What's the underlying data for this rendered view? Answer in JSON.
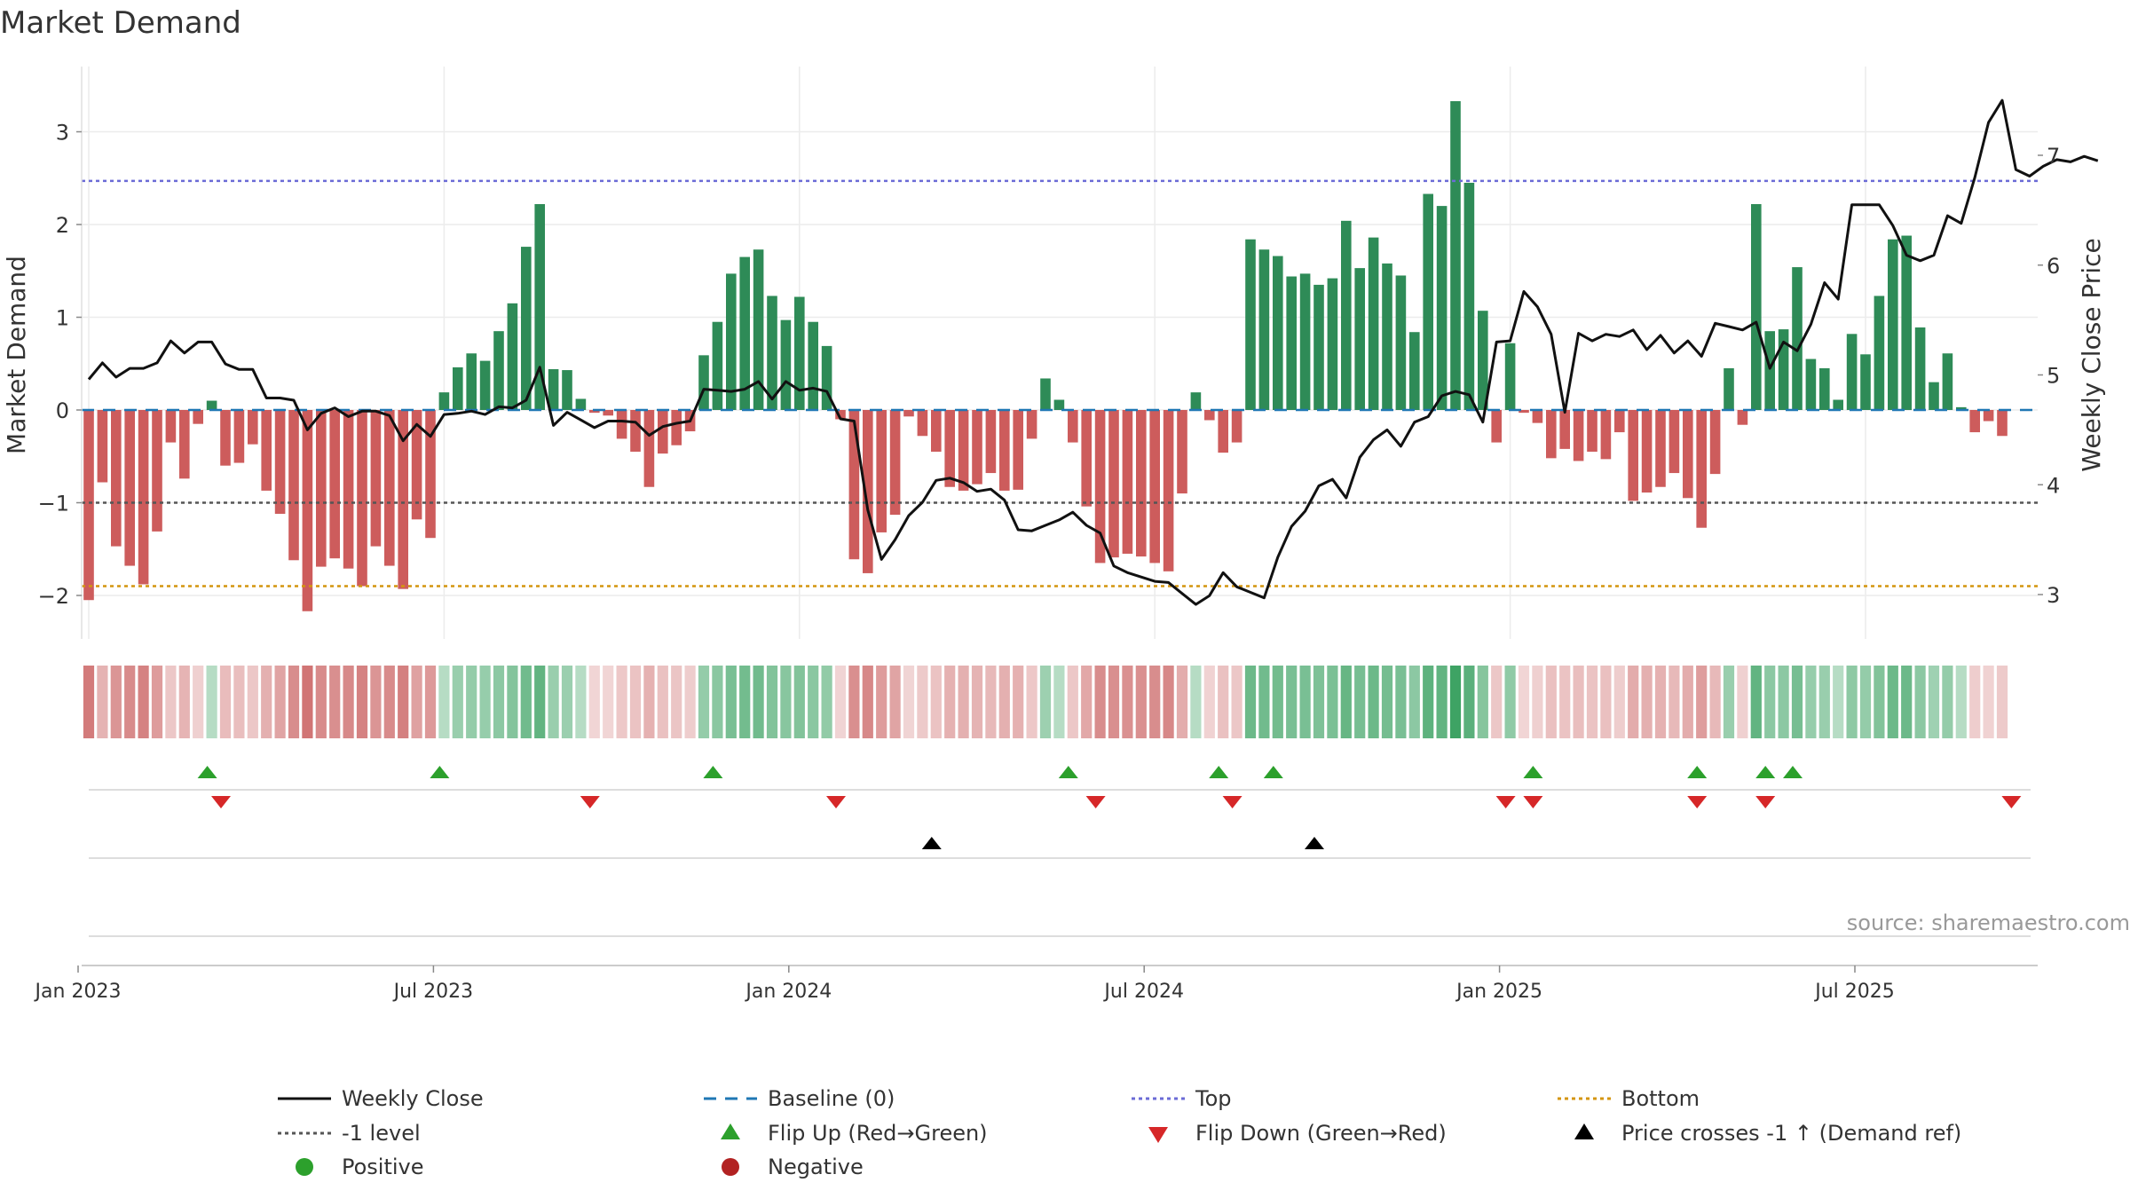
{
  "chart_data": {
    "type": "bar+line",
    "title": "Market Demand",
    "ylabel": "Market Demand",
    "y2label": "Weekly Close Price",
    "ylim": [
      -2.5,
      3.6
    ],
    "y2lim": [
      2.6,
      7.7
    ],
    "yticks": [
      -2,
      -1,
      0,
      1,
      2,
      3
    ],
    "yticklabels": [
      "−2",
      "−1",
      "0",
      "1",
      "2",
      "3"
    ],
    "y2ticks": [
      3,
      4,
      5,
      6,
      7
    ],
    "y2ticklabels": [
      "3",
      "4",
      "5",
      "6",
      "7"
    ],
    "xticks": [
      0,
      26,
      52,
      78,
      104,
      130
    ],
    "xticklabels": [
      "Jan 2023",
      "Jul 2023",
      "Jan 2024",
      "Jul 2024",
      "Jan 2025",
      "Jul 2025"
    ],
    "reference_lines": {
      "top": 2.47,
      "minus_one": -1,
      "bottom": -1.9,
      "baseline": 0
    },
    "demand": [
      -2.05,
      -0.78,
      -1.47,
      -1.68,
      -1.88,
      -1.31,
      -0.35,
      -0.74,
      -0.15,
      0.1,
      -0.6,
      -0.57,
      -0.37,
      -0.87,
      -1.12,
      -1.62,
      -2.17,
      -1.69,
      -1.6,
      -1.71,
      -1.9,
      -1.47,
      -1.68,
      -1.93,
      -1.18,
      -1.38,
      0.19,
      0.46,
      0.61,
      0.53,
      0.85,
      1.15,
      1.76,
      2.22,
      0.44,
      0.43,
      0.12,
      -0.03,
      -0.06,
      -0.31,
      -0.45,
      -0.83,
      -0.47,
      -0.38,
      -0.23,
      0.59,
      0.95,
      1.47,
      1.65,
      1.73,
      1.23,
      0.97,
      1.22,
      0.95,
      0.69,
      -0.1,
      -1.61,
      -1.76,
      -1.32,
      -1.13,
      -0.07,
      -0.28,
      -0.45,
      -0.83,
      -0.87,
      -0.8,
      -0.68,
      -0.87,
      -0.86,
      -0.31,
      0.34,
      0.11,
      -0.35,
      -1.04,
      -1.65,
      -1.59,
      -1.55,
      -1.58,
      -1.65,
      -1.74,
      -0.9,
      0.19,
      -0.11,
      -0.46,
      -0.35,
      1.84,
      1.73,
      1.66,
      1.44,
      1.47,
      1.35,
      1.42,
      2.04,
      1.53,
      1.86,
      1.58,
      1.45,
      0.84,
      2.33,
      2.2,
      3.33,
      2.45,
      1.07,
      -0.35,
      0.72,
      -0.03,
      -0.14,
      -0.52,
      -0.42,
      -0.55,
      -0.45,
      -0.53,
      -0.24,
      -0.98,
      -0.89,
      -0.83,
      -0.68,
      -0.95,
      -1.27,
      -0.69,
      0.45,
      -0.16,
      2.22,
      0.85,
      0.87,
      1.54,
      0.55,
      0.45,
      0.11,
      0.82,
      0.6,
      1.23,
      1.84,
      1.88,
      0.89,
      0.3,
      0.61,
      0.03,
      -0.24,
      -0.12,
      -0.28
    ],
    "weekly_close": [
      4.96,
      5.11,
      4.98,
      5.06,
      5.06,
      5.11,
      5.31,
      5.2,
      5.3,
      5.3,
      5.1,
      5.05,
      5.05,
      4.79,
      4.79,
      4.77,
      4.5,
      4.65,
      4.7,
      4.62,
      4.67,
      4.67,
      4.63,
      4.4,
      4.55,
      4.44,
      4.64,
      4.65,
      4.67,
      4.64,
      4.71,
      4.7,
      4.77,
      5.07,
      4.54,
      4.66,
      4.59,
      4.52,
      4.58,
      4.58,
      4.57,
      4.45,
      4.53,
      4.56,
      4.58,
      4.87,
      4.86,
      4.85,
      4.87,
      4.94,
      4.78,
      4.94,
      4.86,
      4.88,
      4.85,
      4.6,
      4.58,
      3.77,
      3.32,
      3.5,
      3.72,
      3.84,
      4.04,
      4.06,
      4.02,
      3.94,
      3.96,
      3.86,
      3.59,
      3.58,
      3.63,
      3.68,
      3.75,
      3.63,
      3.56,
      3.26,
      3.2,
      3.16,
      3.12,
      3.11,
      3.01,
      2.91,
      2.99,
      3.2,
      3.07,
      3.02,
      2.97,
      3.34,
      3.62,
      3.76,
      3.99,
      4.05,
      3.88,
      4.25,
      4.41,
      4.5,
      4.35,
      4.57,
      4.62,
      4.81,
      4.85,
      4.82,
      4.57,
      5.3,
      5.31,
      5.76,
      5.62,
      5.37,
      4.66,
      5.38,
      5.31,
      5.37,
      5.35,
      5.41,
      5.23,
      5.36,
      5.2,
      5.31,
      5.17,
      5.47,
      5.44,
      5.41,
      5.48,
      5.06,
      5.3,
      5.22,
      5.46,
      5.84,
      5.69,
      6.55,
      6.55,
      6.55,
      6.36,
      6.09,
      6.04,
      6.09,
      6.45,
      6.38,
      6.8,
      7.3,
      7.5,
      6.87,
      6.81,
      6.9,
      6.96,
      6.94,
      6.99,
      6.95
    ],
    "flip_up_weeks": [
      9,
      26,
      46,
      72,
      83,
      87,
      106,
      118,
      123,
      125
    ],
    "flip_down_weeks": [
      10,
      37,
      55,
      74,
      84,
      104,
      106,
      118,
      123,
      141
    ],
    "price_cross_weeks": [
      62,
      90
    ],
    "source_note": "source: sharemaestro.com",
    "legend": [
      {
        "label": "Weekly Close",
        "symbol": "line-solid",
        "color": "#111111"
      },
      {
        "label": "Baseline (0)",
        "symbol": "line-dashed",
        "color": "#1f77b4"
      },
      {
        "label": "Top",
        "symbol": "line-dotted",
        "color": "#6b6bd6"
      },
      {
        "label": "Bottom",
        "symbol": "line-dotted",
        "color": "#d4950f"
      },
      {
        "label": "-1 level",
        "symbol": "line-dotted",
        "color": "#555555"
      },
      {
        "label": "Flip Up (Red→Green)",
        "symbol": "triangle-up",
        "color": "#2ca02c"
      },
      {
        "label": "Flip Down (Green→Red)",
        "symbol": "triangle-down",
        "color": "#d62728"
      },
      {
        "label": "Price crosses -1 ↑ (Demand ref)",
        "symbol": "triangle-up",
        "color": "#000000"
      },
      {
        "label": "Positive",
        "symbol": "circle",
        "color": "#2ca02c"
      },
      {
        "label": "Negative",
        "symbol": "circle",
        "color": "#b22222"
      }
    ],
    "colors": {
      "positive_bar": "#2e8b57",
      "negative_bar": "#cd5c5c",
      "price_line": "#111111"
    }
  }
}
